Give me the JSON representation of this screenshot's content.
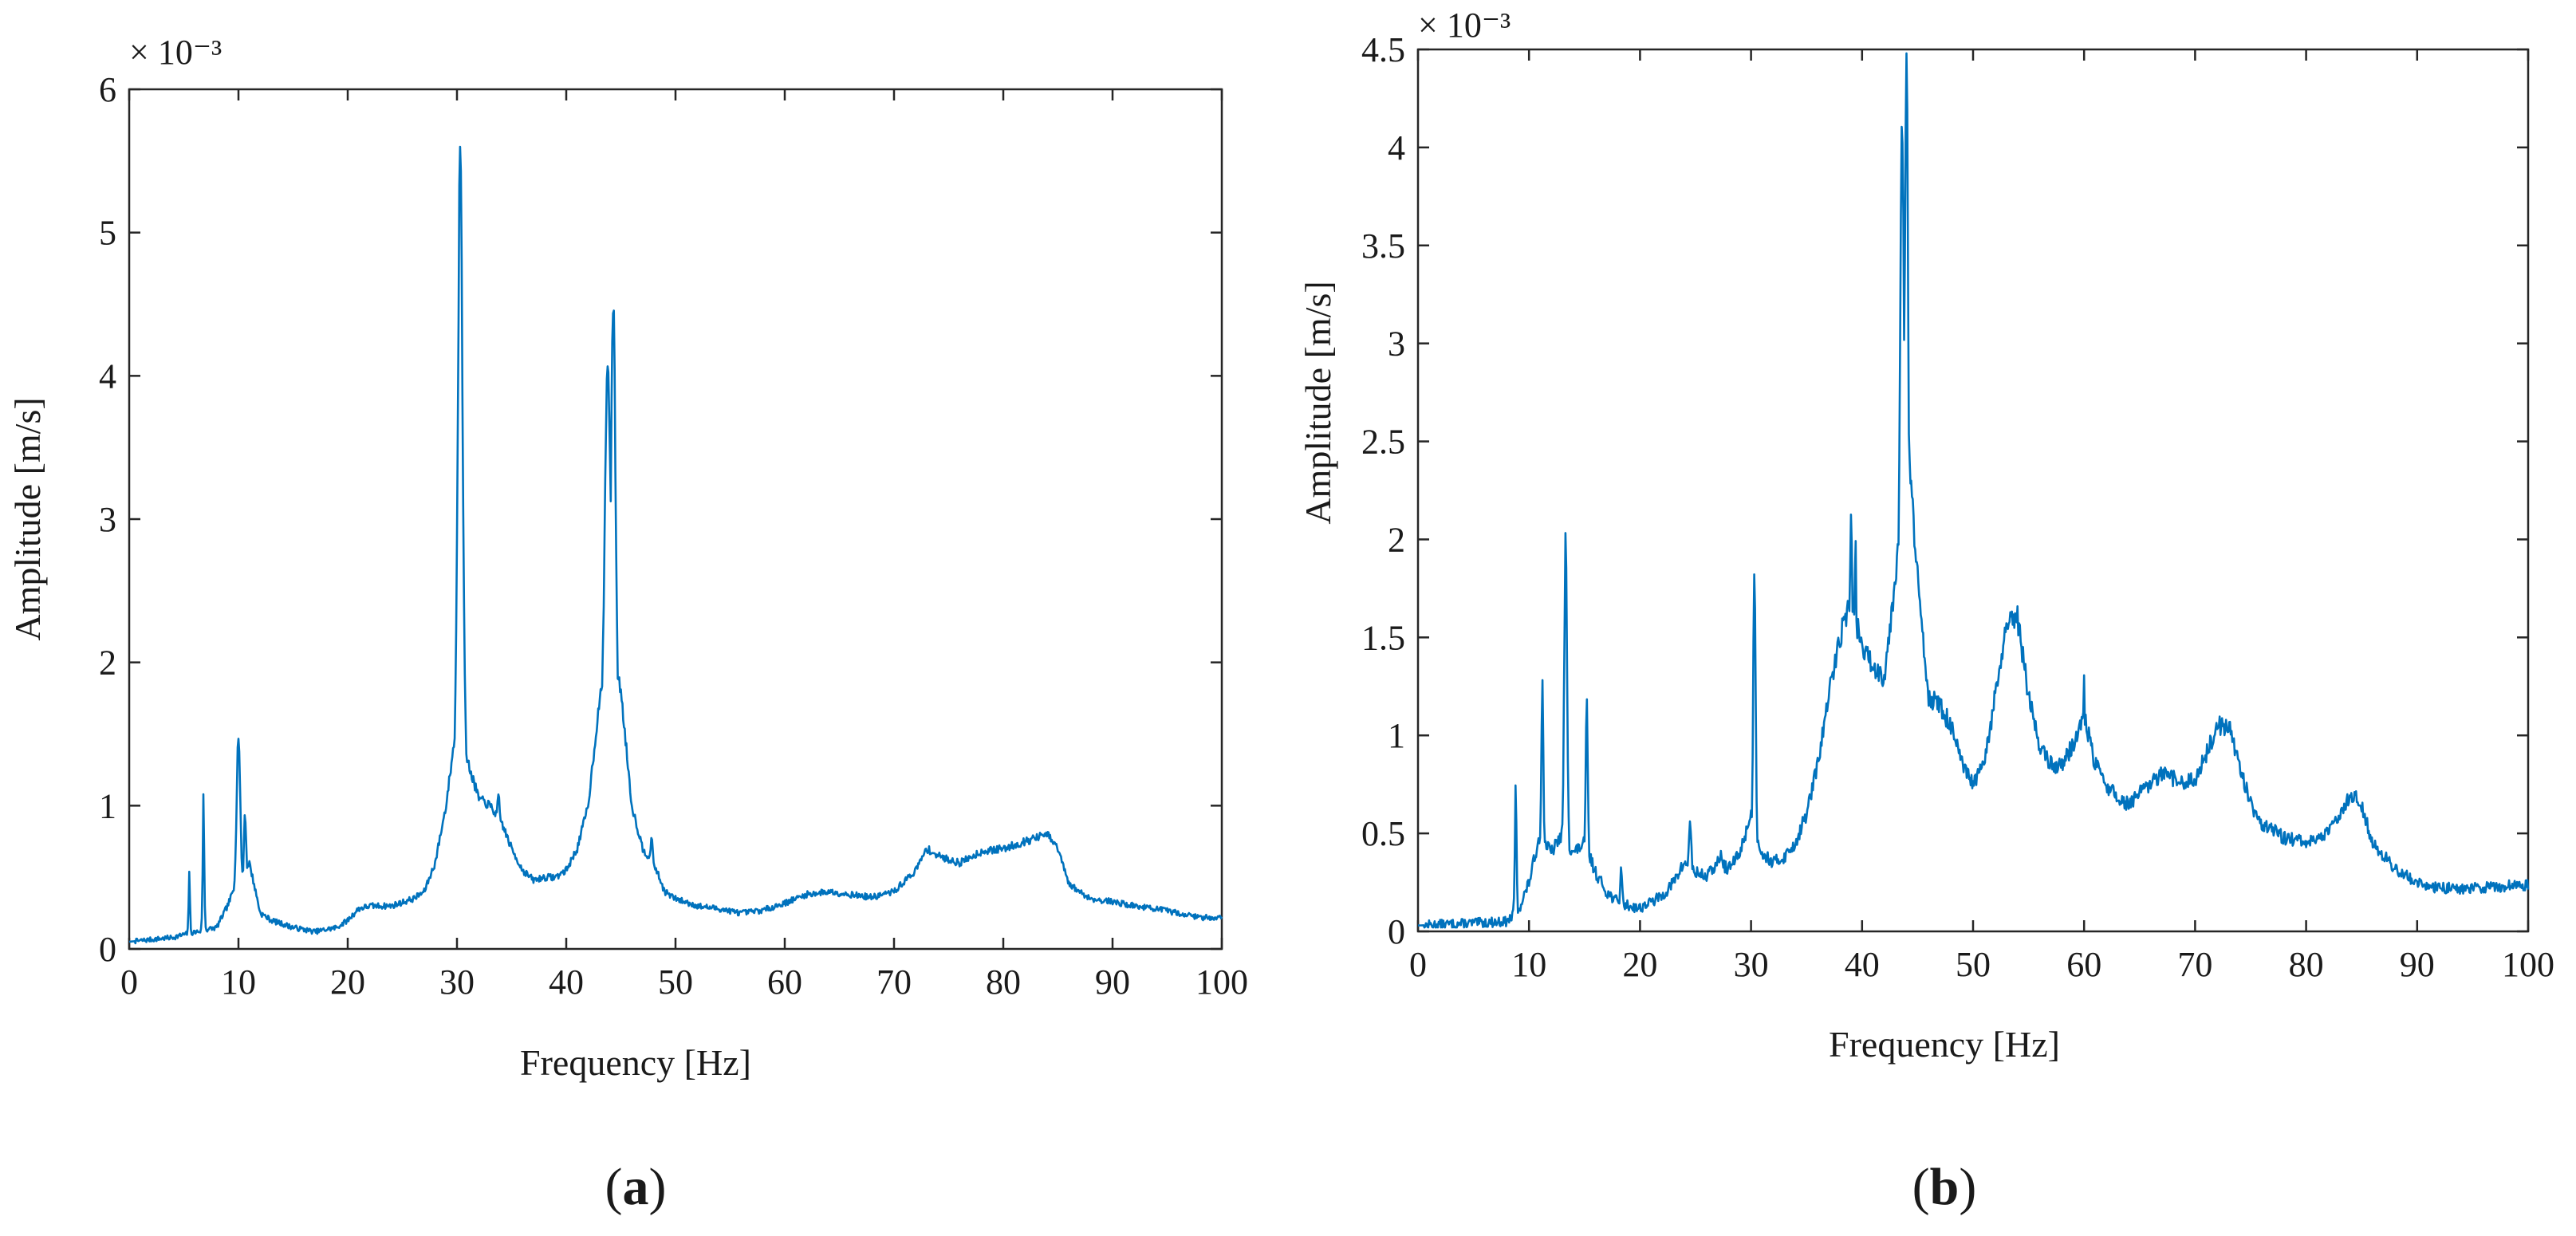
{
  "chart_data": [
    {
      "type": "line",
      "panel_label": "a",
      "xlabel": "Frequency [Hz]",
      "ylabel": "Amplitude [m/s]",
      "y_multiplier": "× 10⁻³",
      "xlim": [
        0,
        100
      ],
      "ylim": [
        0,
        6
      ],
      "xticks": [
        0,
        10,
        20,
        30,
        40,
        50,
        60,
        70,
        80,
        90,
        100
      ],
      "yticks": [
        0,
        1,
        2,
        3,
        4,
        5,
        6
      ],
      "line_color": "#0072BD",
      "baseline": [
        [
          0,
          0.05
        ],
        [
          4,
          0.08
        ],
        [
          5,
          0.1
        ],
        [
          8,
          0.15
        ],
        [
          9,
          0.3
        ],
        [
          10,
          0.5
        ],
        [
          11,
          0.6
        ],
        [
          12,
          0.25
        ],
        [
          13,
          0.2
        ],
        [
          15,
          0.15
        ],
        [
          17,
          0.12
        ],
        [
          19,
          0.15
        ],
        [
          20,
          0.2
        ],
        [
          21,
          0.28
        ],
        [
          22,
          0.3
        ],
        [
          24,
          0.3
        ],
        [
          26,
          0.35
        ],
        [
          27,
          0.4
        ],
        [
          28,
          0.6
        ],
        [
          29,
          1.0
        ],
        [
          30,
          1.6
        ],
        [
          31,
          1.3
        ],
        [
          32,
          1.05
        ],
        [
          33,
          1.0
        ],
        [
          34,
          0.9
        ],
        [
          35,
          0.7
        ],
        [
          36,
          0.55
        ],
        [
          37,
          0.48
        ],
        [
          38,
          0.5
        ],
        [
          39,
          0.5
        ],
        [
          40,
          0.55
        ],
        [
          41,
          0.7
        ],
        [
          42,
          1.0
        ],
        [
          43,
          1.7
        ],
        [
          44,
          2.2
        ],
        [
          45,
          1.8
        ],
        [
          46,
          1.0
        ],
        [
          47,
          0.7
        ],
        [
          48,
          0.6
        ],
        [
          49,
          0.4
        ],
        [
          50,
          0.35
        ],
        [
          52,
          0.3
        ],
        [
          54,
          0.28
        ],
        [
          56,
          0.25
        ],
        [
          58,
          0.27
        ],
        [
          60,
          0.32
        ],
        [
          62,
          0.38
        ],
        [
          64,
          0.4
        ],
        [
          66,
          0.38
        ],
        [
          68,
          0.36
        ],
        [
          70,
          0.4
        ],
        [
          72,
          0.55
        ],
        [
          73,
          0.7
        ],
        [
          74,
          0.65
        ],
        [
          76,
          0.6
        ],
        [
          78,
          0.68
        ],
        [
          80,
          0.7
        ],
        [
          82,
          0.75
        ],
        [
          84,
          0.8
        ],
        [
          85,
          0.7
        ],
        [
          86,
          0.45
        ],
        [
          88,
          0.35
        ],
        [
          90,
          0.33
        ],
        [
          92,
          0.3
        ],
        [
          94,
          0.28
        ],
        [
          96,
          0.25
        ],
        [
          98,
          0.22
        ],
        [
          100,
          0.22
        ]
      ],
      "peaks": [
        [
          5.5,
          0.55,
          0.08
        ],
        [
          6.8,
          1.1,
          0.08
        ],
        [
          10.0,
          1.5,
          0.25
        ],
        [
          10.6,
          0.95,
          0.2
        ],
        [
          30.3,
          5.7,
          0.3
        ],
        [
          33.8,
          1.05,
          0.4
        ],
        [
          43.8,
          4.1,
          0.45
        ],
        [
          44.3,
          4.5,
          0.35
        ],
        [
          47.8,
          0.75,
          0.4
        ]
      ],
      "noise": 0.04,
      "seed": 7
    },
    {
      "type": "line",
      "panel_label": "b",
      "xlabel": "Frequency [Hz]",
      "ylabel": "Amplitude [m/s]",
      "y_multiplier": "× 10⁻³",
      "xlim": [
        0,
        100
      ],
      "ylim": [
        0,
        4.5
      ],
      "xticks": [
        0,
        10,
        20,
        30,
        40,
        50,
        60,
        70,
        80,
        90,
        100
      ],
      "yticks": [
        0,
        0.5,
        1,
        1.5,
        2,
        2.5,
        3,
        3.5,
        4,
        4.5
      ],
      "line_color": "#0072BD",
      "baseline": [
        [
          0,
          0.03
        ],
        [
          8,
          0.05
        ],
        [
          9,
          0.1
        ],
        [
          10,
          0.25
        ],
        [
          11,
          0.5
        ],
        [
          12,
          0.4
        ],
        [
          13,
          0.5
        ],
        [
          14,
          0.4
        ],
        [
          15,
          0.45
        ],
        [
          16,
          0.3
        ],
        [
          17,
          0.2
        ],
        [
          18,
          0.15
        ],
        [
          19,
          0.13
        ],
        [
          20,
          0.12
        ],
        [
          22,
          0.18
        ],
        [
          23,
          0.25
        ],
        [
          24,
          0.35
        ],
        [
          25,
          0.3
        ],
        [
          26,
          0.28
        ],
        [
          27,
          0.35
        ],
        [
          28,
          0.32
        ],
        [
          29,
          0.4
        ],
        [
          30,
          0.6
        ],
        [
          31,
          0.4
        ],
        [
          32,
          0.35
        ],
        [
          33,
          0.38
        ],
        [
          34,
          0.45
        ],
        [
          35,
          0.6
        ],
        [
          36,
          0.85
        ],
        [
          37,
          1.2
        ],
        [
          38,
          1.5
        ],
        [
          39,
          1.7
        ],
        [
          40,
          1.45
        ],
        [
          41,
          1.35
        ],
        [
          42,
          1.3
        ],
        [
          43,
          1.8
        ],
        [
          44,
          2.6
        ],
        [
          45,
          1.8
        ],
        [
          46,
          1.2
        ],
        [
          47,
          1.15
        ],
        [
          48,
          1.05
        ],
        [
          49,
          0.85
        ],
        [
          50,
          0.75
        ],
        [
          51,
          0.85
        ],
        [
          52,
          1.2
        ],
        [
          53,
          1.55
        ],
        [
          54,
          1.6
        ],
        [
          55,
          1.2
        ],
        [
          56,
          0.95
        ],
        [
          57,
          0.85
        ],
        [
          58,
          0.85
        ],
        [
          59,
          0.95
        ],
        [
          60,
          1.1
        ],
        [
          61,
          0.85
        ],
        [
          62,
          0.75
        ],
        [
          63,
          0.68
        ],
        [
          64,
          0.65
        ],
        [
          65,
          0.7
        ],
        [
          66,
          0.75
        ],
        [
          67,
          0.8
        ],
        [
          68,
          0.78
        ],
        [
          69,
          0.75
        ],
        [
          70,
          0.78
        ],
        [
          71,
          0.9
        ],
        [
          72,
          1.05
        ],
        [
          73,
          1.05
        ],
        [
          74,
          0.85
        ],
        [
          75,
          0.65
        ],
        [
          76,
          0.55
        ],
        [
          78,
          0.48
        ],
        [
          80,
          0.45
        ],
        [
          82,
          0.5
        ],
        [
          83,
          0.6
        ],
        [
          84,
          0.7
        ],
        [
          85,
          0.65
        ],
        [
          86,
          0.45
        ],
        [
          88,
          0.32
        ],
        [
          90,
          0.25
        ],
        [
          92,
          0.22
        ],
        [
          95,
          0.22
        ],
        [
          100,
          0.24
        ]
      ],
      "peaks": [
        [
          8.8,
          0.8,
          0.08
        ],
        [
          11.2,
          1.25,
          0.15
        ],
        [
          13.3,
          2.0,
          0.18
        ],
        [
          15.2,
          1.15,
          0.15
        ],
        [
          18.3,
          0.33,
          0.15
        ],
        [
          24.5,
          0.55,
          0.25
        ],
        [
          27.3,
          0.42,
          0.25
        ],
        [
          30.3,
          1.9,
          0.15
        ],
        [
          39.0,
          2.15,
          0.2
        ],
        [
          39.4,
          2.0,
          0.15
        ],
        [
          43.6,
          4.1,
          0.3
        ],
        [
          44.0,
          4.45,
          0.25
        ],
        [
          60.0,
          1.3,
          0.15
        ]
      ],
      "noise": 0.06,
      "seed": 13
    }
  ]
}
